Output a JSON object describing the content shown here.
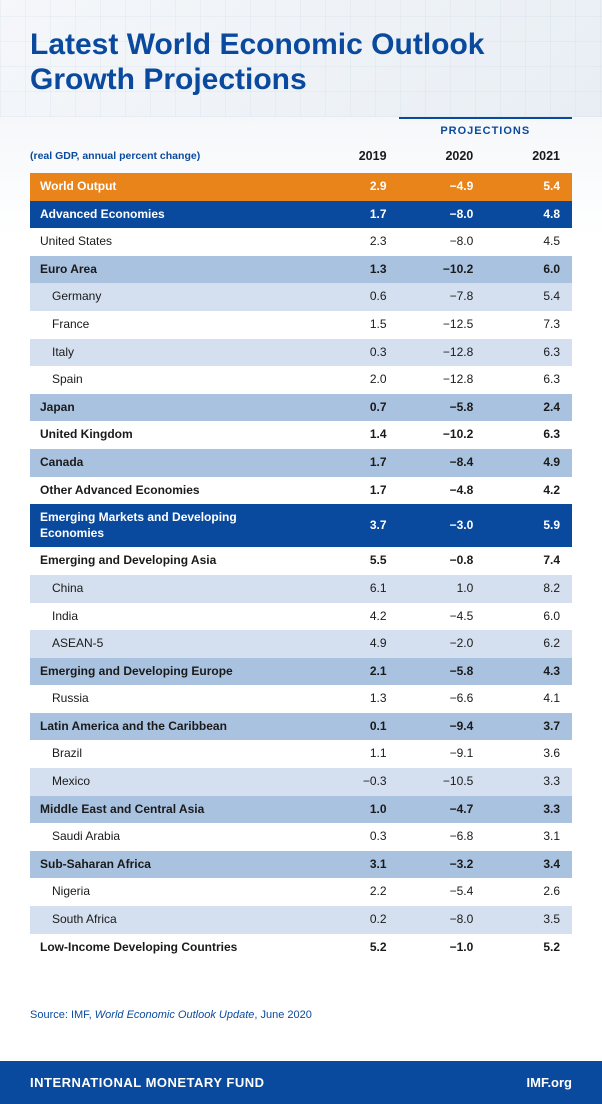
{
  "title_line1": "Latest World Economic Outlook",
  "title_line2": "Growth Projections",
  "subtitle": "(real GDP, annual percent change)",
  "projections_label": "PROJECTIONS",
  "years": [
    "2019",
    "2020",
    "2021"
  ],
  "colors": {
    "orange": "#e8841a",
    "darkblue": "#0a4a9e",
    "midblue": "#a9c2e0",
    "lightblue": "#d4e0ef",
    "white": "#ffffff",
    "title": "#0a4a9e",
    "footer_bg": "#0a4a9e"
  },
  "rows": [
    {
      "label": "World Output",
      "v": [
        "2.9",
        "−4.9",
        "5.4"
      ],
      "style": "orange",
      "bold": true,
      "indent": 0
    },
    {
      "label": "Advanced Economies",
      "v": [
        "1.7",
        "−8.0",
        "4.8"
      ],
      "style": "darkblue",
      "bold": true,
      "indent": 0
    },
    {
      "label": "United States",
      "v": [
        "2.3",
        "−8.0",
        "4.5"
      ],
      "style": "white",
      "bold": false,
      "indent": 0
    },
    {
      "label": "Euro Area",
      "v": [
        "1.3",
        "−10.2",
        "6.0"
      ],
      "style": "midblue",
      "bold": false,
      "indent": 0
    },
    {
      "label": "Germany",
      "v": [
        "0.6",
        "−7.8",
        "5.4"
      ],
      "style": "lightblue",
      "bold": false,
      "indent": 1
    },
    {
      "label": "France",
      "v": [
        "1.5",
        "−12.5",
        "7.3"
      ],
      "style": "white",
      "bold": false,
      "indent": 1
    },
    {
      "label": "Italy",
      "v": [
        "0.3",
        "−12.8",
        "6.3"
      ],
      "style": "lightblue",
      "bold": false,
      "indent": 1
    },
    {
      "label": "Spain",
      "v": [
        "2.0",
        "−12.8",
        "6.3"
      ],
      "style": "white",
      "bold": false,
      "indent": 1
    },
    {
      "label": "Japan",
      "v": [
        "0.7",
        "−5.8",
        "2.4"
      ],
      "style": "midblue",
      "bold": true,
      "indent": 0
    },
    {
      "label": "United Kingdom",
      "v": [
        "1.4",
        "−10.2",
        "6.3"
      ],
      "style": "white",
      "bold": true,
      "indent": 0
    },
    {
      "label": "Canada",
      "v": [
        "1.7",
        "−8.4",
        "4.9"
      ],
      "style": "midblue",
      "bold": true,
      "indent": 0
    },
    {
      "label": "Other Advanced Economies",
      "v": [
        "1.7",
        "−4.8",
        "4.2"
      ],
      "style": "white",
      "bold": true,
      "indent": 0
    },
    {
      "label": "Emerging Markets and Developing Economies",
      "v": [
        "3.7",
        "−3.0",
        "5.9"
      ],
      "style": "darkblue",
      "bold": true,
      "indent": 0
    },
    {
      "label": "Emerging and Developing Asia",
      "v": [
        "5.5",
        "−0.8",
        "7.4"
      ],
      "style": "white",
      "bold": true,
      "indent": 0
    },
    {
      "label": "China",
      "v": [
        "6.1",
        "1.0",
        "8.2"
      ],
      "style": "lightblue",
      "bold": false,
      "indent": 1
    },
    {
      "label": "India",
      "v": [
        "4.2",
        "−4.5",
        "6.0"
      ],
      "style": "white",
      "bold": false,
      "indent": 1
    },
    {
      "label": "ASEAN-5",
      "v": [
        "4.9",
        "−2.0",
        "6.2"
      ],
      "style": "lightblue",
      "bold": false,
      "indent": 1
    },
    {
      "label": "Emerging and Developing Europe",
      "v": [
        "2.1",
        "−5.8",
        "4.3"
      ],
      "style": "midblue",
      "bold": true,
      "indent": 0
    },
    {
      "label": "Russia",
      "v": [
        "1.3",
        "−6.6",
        "4.1"
      ],
      "style": "white",
      "bold": false,
      "indent": 1
    },
    {
      "label": "Latin America and the Caribbean",
      "v": [
        "0.1",
        "−9.4",
        "3.7"
      ],
      "style": "midblue",
      "bold": true,
      "indent": 0
    },
    {
      "label": "Brazil",
      "v": [
        "1.1",
        "−9.1",
        "3.6"
      ],
      "style": "white",
      "bold": false,
      "indent": 1
    },
    {
      "label": "Mexico",
      "v": [
        "−0.3",
        "−10.5",
        "3.3"
      ],
      "style": "lightblue",
      "bold": false,
      "indent": 1
    },
    {
      "label": "Middle East and Central Asia",
      "v": [
        "1.0",
        "−4.7",
        "3.3"
      ],
      "style": "midblue",
      "bold": true,
      "indent": 0
    },
    {
      "label": "Saudi Arabia",
      "v": [
        "0.3",
        "−6.8",
        "3.1"
      ],
      "style": "white",
      "bold": false,
      "indent": 1
    },
    {
      "label": "Sub-Saharan Africa",
      "v": [
        "3.1",
        "−3.2",
        "3.4"
      ],
      "style": "midblue",
      "bold": true,
      "indent": 0
    },
    {
      "label": "Nigeria",
      "v": [
        "2.2",
        "−5.4",
        "2.6"
      ],
      "style": "white",
      "bold": false,
      "indent": 1
    },
    {
      "label": "South Africa",
      "v": [
        "0.2",
        "−8.0",
        "3.5"
      ],
      "style": "lightblue",
      "bold": false,
      "indent": 1
    },
    {
      "label": "Low-Income Developing Countries",
      "v": [
        "5.2",
        "−1.0",
        "5.2"
      ],
      "style": "white",
      "bold": true,
      "indent": 0
    }
  ],
  "source_prefix": "Source: IMF, ",
  "source_title": "World Economic Outlook Update",
  "source_suffix": ", June 2020",
  "footer_left": "INTERNATIONAL MONETARY FUND",
  "footer_right": "IMF.org",
  "column_widths": {
    "label_pct": 52,
    "val_pct": 16
  }
}
